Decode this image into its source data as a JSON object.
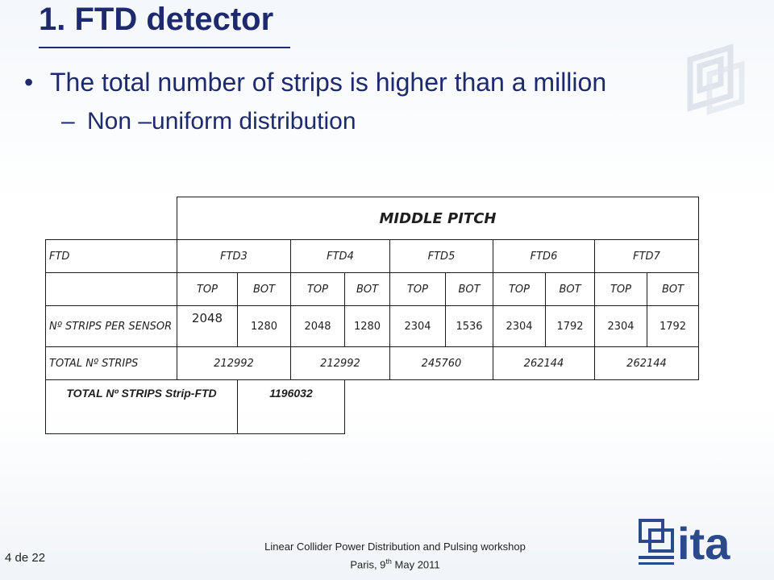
{
  "slide": {
    "title": "1. FTD detector",
    "bullet": "The total number of strips is higher than a million",
    "subbullet": "Non –uniform distribution",
    "bullet_glyph": "•",
    "sub_glyph": "–"
  },
  "table": {
    "header": "MIDDLE PITCH",
    "ftd_row": [
      "FTD",
      "FTD3",
      "FTD4",
      "FTD5",
      "FTD6",
      "FTD7"
    ],
    "sides": [
      "TOP",
      "BOT",
      "TOP",
      "BOT",
      "TOP",
      "BOT",
      "TOP",
      "BOT",
      "TOP",
      "BOT"
    ],
    "strips_label": "Nº STRIPS PER SENSOR",
    "strips_values": [
      "2048",
      "1280",
      "2048",
      "1280",
      "2304",
      "1536",
      "2304",
      "1792",
      "2304",
      "1792"
    ],
    "total_label": "TOTAL  Nº STRIPS",
    "total_values": [
      "212992",
      "212992",
      "245760",
      "262144",
      "262144"
    ],
    "grand_label": "TOTAL  Nº STRIPS Strip-FTD",
    "grand_value": "1196032"
  },
  "footer": {
    "line1": "Linear Collider Power Distribution and Pulsing workshop",
    "line2_pre": "Paris,  9",
    "line2_sup": "th",
    "line2_post": " May  2011",
    "page": "4 de 22"
  },
  "logo": {
    "text": "ita",
    "color": "#2b4a8c"
  }
}
